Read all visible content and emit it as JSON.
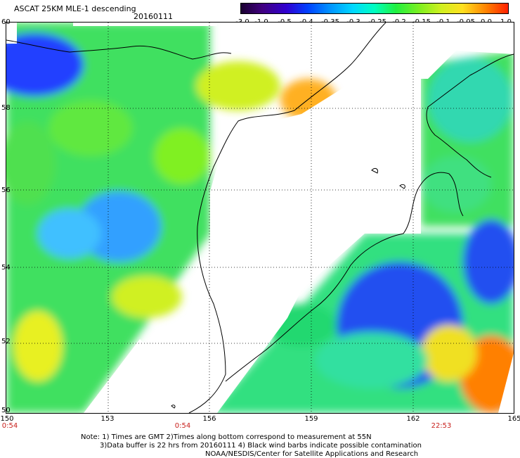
{
  "header": {
    "title": "ASCAT 25KM MLE-1 descending",
    "date": "20160111"
  },
  "colorbar": {
    "labels": [
      "-3.0",
      "-1.0",
      "-0.5",
      "-0.4",
      "-0.35",
      "-0.3",
      "-0.25",
      "-0.2",
      "-0.15",
      "-0.1",
      "-0.05",
      "0.0",
      "1.0"
    ],
    "colors": [
      "#1a0030",
      "#400080",
      "#3000d0",
      "#0040ff",
      "#0090ff",
      "#00d8ff",
      "#00ffc0",
      "#20f040",
      "#80f020",
      "#d0f020",
      "#ffe020",
      "#ff8000",
      "#ff2000"
    ]
  },
  "axes": {
    "lat_labels": [
      "60",
      "58",
      "56",
      "54",
      "52",
      "50"
    ],
    "lon_labels": [
      "150",
      "153",
      "156",
      "159",
      "162",
      "165"
    ]
  },
  "times": [
    "0:54",
    "0:54",
    "22:53"
  ],
  "notes": {
    "line1": "Note: 1) Times are GMT 2)Times along bottom correspond to measurement at 55N",
    "line2": "3)Data buffer is 22 hrs from 20160111 4) Black wind barbs indicate possible contamination",
    "line3": "NOAA/NESDIS/Center for Satellite Applications and Research"
  }
}
